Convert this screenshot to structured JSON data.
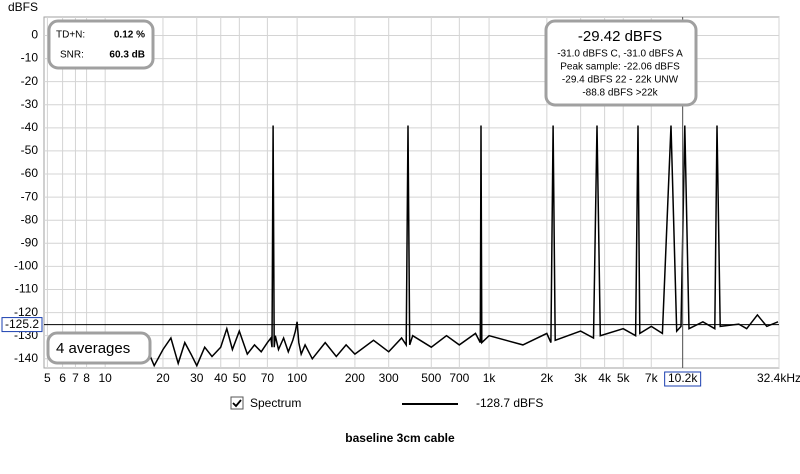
{
  "chart_data": {
    "type": "line",
    "title": "baseline 3cm cable",
    "y_label": "dBFS",
    "x_scale": "log",
    "grid": true,
    "xlim": [
      4.8,
      32400
    ],
    "ylim": [
      -144,
      8
    ],
    "xticks": [
      5,
      6,
      7,
      8,
      10,
      20,
      30,
      40,
      50,
      70,
      100,
      200,
      300,
      500,
      700,
      {
        "value": 1000,
        "label": "1k"
      },
      {
        "value": 2000,
        "label": "2k"
      },
      {
        "value": 3000,
        "label": "3k"
      },
      {
        "value": 4000,
        "label": "4k"
      },
      {
        "value": 5000,
        "label": "5k"
      },
      {
        "value": 7000,
        "label": "7k"
      },
      {
        "value": 10200,
        "label": "10.2k"
      },
      {
        "value": 32400,
        "label": "32.4kHz"
      }
    ],
    "yticks": [
      0,
      -10,
      -20,
      -30,
      -40,
      -50,
      -60,
      -70,
      -80,
      -90,
      -100,
      -110,
      -120,
      -130,
      -140
    ],
    "cursor": {
      "x": 10200,
      "y": -125.2
    },
    "series": [
      {
        "name": "Spectrum",
        "color": "#000000",
        "x": [
          14,
          16,
          18,
          20,
          22,
          24,
          26,
          28,
          30,
          33,
          36,
          40,
          43,
          46,
          50,
          55,
          60,
          65,
          70,
          73,
          74,
          75,
          76,
          77,
          80,
          85,
          90,
          95,
          98,
          100,
          102,
          105,
          110,
          120,
          140,
          160,
          180,
          200,
          250,
          300,
          350,
          370,
          378,
          386,
          400,
          500,
          600,
          700,
          850,
          900,
          908,
          916,
          1000,
          1500,
          2000,
          2100,
          2155,
          2210,
          3000,
          3500,
          3650,
          3800,
          5000,
          5800,
          5970,
          6100,
          7000,
          8000,
          8870,
          9500,
          10000,
          10470,
          11000,
          13000,
          15000,
          15400,
          16000,
          20000,
          22000,
          25000,
          28000,
          32000
        ],
        "values": [
          -140,
          -133,
          -143,
          -136,
          -131,
          -142,
          -133,
          -138,
          -143,
          -135,
          -139,
          -135,
          -127,
          -136,
          -128,
          -138,
          -134,
          -137,
          -133,
          -131,
          -135,
          -39,
          -135,
          -130,
          -136,
          -131,
          -137,
          -132,
          -128,
          -124,
          -133,
          -138,
          -134,
          -140,
          -133,
          -139,
          -134,
          -138,
          -132,
          -137,
          -131,
          -134,
          -39,
          -134,
          -130,
          -135,
          -130,
          -134,
          -129,
          -133,
          -39,
          -133,
          -130,
          -134,
          -129,
          -133,
          -39,
          -132,
          -128,
          -131,
          -39,
          -130,
          -127,
          -130,
          -39,
          -129,
          -126,
          -129,
          -39,
          -128,
          -126,
          -39,
          -127,
          -124,
          -127,
          -39,
          -126,
          -125,
          -127,
          -121,
          -126,
          -124
        ]
      }
    ],
    "legend_reading": "-128.7 dBFS",
    "annotations": {
      "td_n_label": "TD+N:",
      "td_n_value": "0.12 %",
      "snr_label": "SNR:",
      "snr_value": "60.3 dB",
      "level": "-29.42 dBFS",
      "level_lines": [
        "-31.0 dBFS C, -31.0 dBFS A",
        "Peak sample: -22.06 dBFS",
        "-29.4 dBFS 22 - 22k UNW",
        "-88.8 dBFS >22k"
      ],
      "averages": "4 averages"
    }
  }
}
